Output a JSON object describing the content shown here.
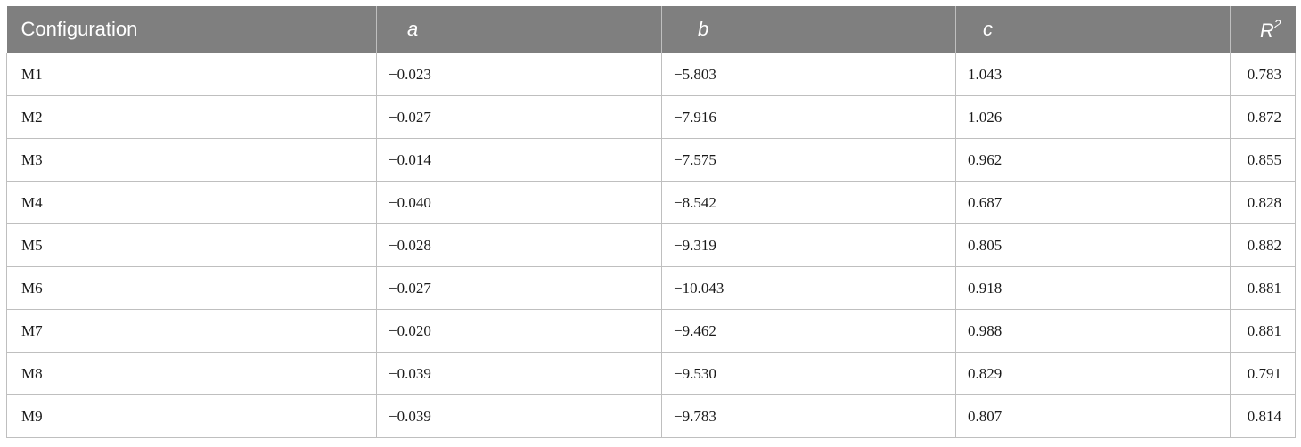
{
  "table": {
    "headers": {
      "configuration": "Configuration",
      "a": "a",
      "b": "b",
      "c": "c",
      "r2_base": "R",
      "r2_sup": "2"
    },
    "rows": [
      {
        "config": "M1",
        "a": "−0.023",
        "b": "−5.803",
        "c": "1.043",
        "r2": "0.783"
      },
      {
        "config": "M2",
        "a": "−0.027",
        "b": "−7.916",
        "c": "1.026",
        "r2": "0.872"
      },
      {
        "config": "M3",
        "a": "−0.014",
        "b": "−7.575",
        "c": "0.962",
        "r2": "0.855"
      },
      {
        "config": "M4",
        "a": "−0.040",
        "b": "−8.542",
        "c": "0.687",
        "r2": "0.828"
      },
      {
        "config": "M5",
        "a": "−0.028",
        "b": "−9.319",
        "c": "0.805",
        "r2": "0.882"
      },
      {
        "config": "M6",
        "a": "−0.027",
        "b": "−10.043",
        "c": "0.918",
        "r2": "0.881"
      },
      {
        "config": "M7",
        "a": "−0.020",
        "b": "−9.462",
        "c": "0.988",
        "r2": "0.881"
      },
      {
        "config": "M8",
        "a": "−0.039",
        "b": "−9.530",
        "c": "0.829",
        "r2": "0.791"
      },
      {
        "config": "M9",
        "a": "−0.039",
        "b": "−9.783",
        "c": "0.807",
        "r2": "0.814"
      }
    ]
  },
  "colors": {
    "header_bg": "#7f7f7f",
    "header_text": "#ffffff",
    "grid_line": "#bfbfbf"
  }
}
